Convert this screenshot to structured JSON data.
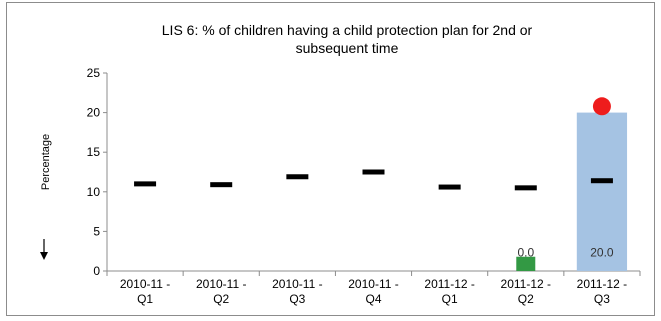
{
  "chart_data": {
    "type": "bar",
    "title_lines": [
      "LIS 6: % of children having a child protection plan for 2nd or",
      "subsequent time"
    ],
    "xlabel": "",
    "ylabel": "Percentage",
    "ylim": [
      0,
      25
    ],
    "yticks": [
      0,
      5,
      10,
      15,
      20,
      25
    ],
    "grid": false,
    "legend": "none",
    "direction_indicator": "down-arrow",
    "categories": [
      [
        "2010-11 -",
        "Q1"
      ],
      [
        "2010-11 -",
        "Q2"
      ],
      [
        "2010-11 -",
        "Q3"
      ],
      [
        "2010-11 -",
        "Q4"
      ],
      [
        "2011-12 -",
        "Q1"
      ],
      [
        "2011-12 -",
        "Q2"
      ],
      [
        "2011-12 -",
        "Q3"
      ]
    ],
    "series": [
      {
        "values": [
          null,
          null,
          null,
          null,
          null,
          0.0,
          20.0
        ],
        "bar_colors": [
          "",
          "",
          "",
          "",
          "",
          "#339944",
          "#a5c3e3"
        ],
        "data_labels": [
          "",
          "",
          "",
          "",
          "",
          "0.0",
          "20.0"
        ]
      },
      {
        "type": "marker-dash",
        "values": [
          11.0,
          10.9,
          11.9,
          12.5,
          10.6,
          10.5,
          11.4
        ],
        "color": "#000000"
      },
      {
        "type": "marker-circle",
        "values": [
          null,
          null,
          null,
          null,
          null,
          null,
          20.8
        ],
        "color": "#ee1c1c"
      }
    ],
    "small_green_marker_value": 1.8
  }
}
